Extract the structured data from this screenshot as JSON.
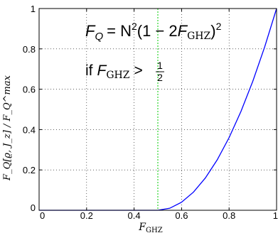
{
  "chart_data": {
    "type": "line",
    "xlabel_main": "F",
    "xlabel_sub": "GHZ",
    "ylabel": "F_Q[ϱ, J_z] / F_Q^max",
    "xlim": [
      0,
      1
    ],
    "ylim": [
      0,
      1
    ],
    "x_ticks": [
      "0",
      "0.2",
      "0.4",
      "0.6",
      "0.8",
      "1"
    ],
    "x_tick_values": [
      0,
      0.2,
      0.4,
      0.6,
      0.8,
      1
    ],
    "y_ticks": [
      "0",
      "0.2",
      "0.4",
      "0.6",
      "0.8",
      "1"
    ],
    "y_tick_values": [
      0,
      0.2,
      0.4,
      0.6,
      0.8,
      1
    ],
    "grid": true,
    "series": [
      {
        "color": "#0000ff",
        "x": [
          0,
          0.05,
          0.1,
          0.15,
          0.2,
          0.25,
          0.3,
          0.35,
          0.4,
          0.45,
          0.5,
          0.55,
          0.6,
          0.65,
          0.7,
          0.75,
          0.8,
          0.85,
          0.9,
          0.95,
          1.0
        ],
        "y": [
          0,
          0,
          0,
          0,
          0,
          0,
          0,
          0,
          0,
          0,
          0,
          0.01,
          0.04,
          0.09,
          0.16,
          0.25,
          0.36,
          0.49,
          0.64,
          0.81,
          1.0
        ]
      }
    ],
    "threshold_x": 0.5,
    "threshold_color": "#00cc00",
    "annotations": {
      "formula_lhs_main": "F",
      "formula_lhs_sub": "Q",
      "formula_eq": "= N",
      "formula_sup": "2",
      "formula_rest1": "(1 − 2",
      "formula_f2": "F",
      "formula_sub2": "GHZ",
      "formula_rest2": ")",
      "formula_sup2": "2",
      "cond_if": "if",
      "cond_f": "F",
      "cond_sub": "GHZ",
      "cond_gt": ">",
      "cond_num": "1",
      "cond_den": "2"
    }
  }
}
